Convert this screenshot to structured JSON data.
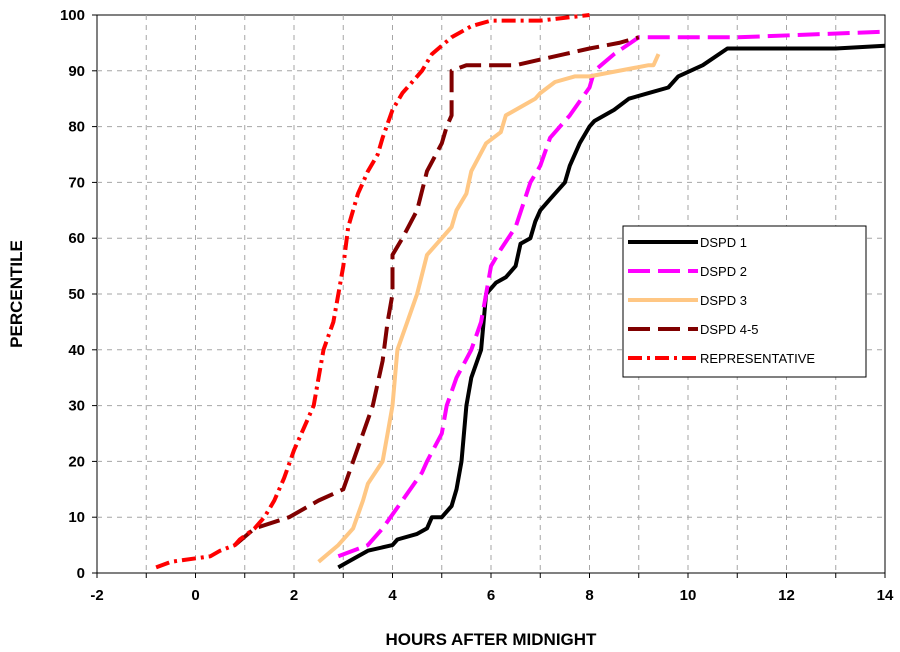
{
  "chart_data": {
    "type": "line",
    "xlabel": "HOURS AFTER MIDNIGHT",
    "ylabel": "PERCENTILE",
    "xlim": [
      -2,
      14
    ],
    "ylim": [
      0,
      100
    ],
    "xticks": [
      -2,
      0,
      2,
      4,
      6,
      8,
      10,
      12,
      14
    ],
    "yticks": [
      0,
      10,
      20,
      30,
      40,
      50,
      60,
      70,
      80,
      90,
      100
    ],
    "grid": true,
    "legend_position": "right",
    "series": [
      {
        "name": "DSPD 1",
        "color": "#000000",
        "dash": "solid",
        "x": [
          2.9,
          3.1,
          3.5,
          4.0,
          4.1,
          4.5,
          4.7,
          4.8,
          5.0,
          5.2,
          5.3,
          5.4,
          5.5,
          5.6,
          5.8,
          5.9,
          6.0,
          6.1,
          6.3,
          6.5,
          6.6,
          6.8,
          6.9,
          7.0,
          7.2,
          7.5,
          7.6,
          7.8,
          8.0,
          8.1,
          8.5,
          8.8,
          9.2,
          9.6,
          9.8,
          10.3,
          10.8,
          10.9,
          12.0,
          13.0,
          14.0
        ],
        "y": [
          1,
          2,
          4,
          5,
          6,
          7,
          8,
          10,
          10,
          12,
          15,
          20,
          30,
          35,
          40,
          50,
          51,
          52,
          53,
          55,
          59,
          60,
          63,
          65,
          67,
          70,
          73,
          77,
          80,
          81,
          83,
          85,
          86,
          87,
          89,
          91,
          94,
          94,
          94,
          94,
          94.5
        ]
      },
      {
        "name": "DSPD 2",
        "color": "#ff00ff",
        "dash": "dashed",
        "x": [
          2.9,
          3.5,
          3.8,
          4.2,
          4.6,
          4.7,
          5.0,
          5.1,
          5.3,
          5.6,
          5.8,
          5.9,
          6.0,
          6.2,
          6.5,
          6.8,
          7.0,
          7.2,
          7.6,
          8.0,
          8.1,
          8.5,
          9.0,
          11.0,
          14.0
        ],
        "y": [
          3,
          5,
          8,
          13,
          18,
          20,
          25,
          30,
          35,
          40,
          45,
          50,
          55,
          58,
          62,
          70,
          73,
          78,
          82,
          87,
          90,
          93,
          96,
          96,
          97
        ]
      },
      {
        "name": "DSPD 3",
        "color": "#ffc784",
        "dash": "solid",
        "x": [
          2.5,
          2.9,
          3.2,
          3.4,
          3.5,
          3.8,
          3.9,
          4.0,
          4.1,
          4.3,
          4.5,
          4.7,
          5.0,
          5.2,
          5.3,
          5.5,
          5.6,
          5.9,
          6.2,
          6.3,
          6.7,
          6.9,
          7.0,
          7.3,
          7.7,
          8.0,
          9.2,
          9.3,
          9.4
        ],
        "y": [
          2,
          5,
          8,
          13,
          16,
          20,
          25,
          30,
          40,
          45,
          50,
          57,
          60,
          62,
          65,
          68,
          72,
          77,
          79,
          82,
          84,
          85,
          86,
          88,
          89,
          89,
          91,
          91,
          93
        ]
      },
      {
        "name": "DSPD 4-5",
        "color": "#800000",
        "dash": "dashed",
        "x": [
          0.8,
          1.2,
          1.9,
          2.5,
          3.0,
          3.2,
          3.4,
          3.6,
          3.8,
          3.9,
          4.0,
          4.0,
          4.2,
          4.5,
          4.7,
          5.0,
          5.1,
          5.2,
          5.2,
          5.5,
          6.0,
          6.5,
          7.0,
          7.5,
          8.0,
          8.6,
          9.0
        ],
        "y": [
          5,
          8,
          10,
          13,
          15,
          20,
          25,
          30,
          38,
          45,
          50,
          57,
          60,
          65,
          72,
          77,
          80,
          82,
          90,
          91,
          91,
          91,
          92,
          93,
          94,
          95,
          96
        ]
      },
      {
        "name": "REPRESENTATIVE",
        "color": "#ff0000",
        "dash": "dashdot",
        "x": [
          -0.8,
          -0.5,
          0.3,
          0.5,
          0.8,
          0.9,
          1.2,
          1.4,
          1.6,
          1.8,
          2.0,
          2.2,
          2.4,
          2.5,
          2.6,
          2.8,
          3.0,
          3.1,
          3.2,
          3.3,
          3.4,
          3.5,
          3.7,
          3.8,
          4.0,
          4.2,
          4.4,
          4.6,
          4.8,
          5.2,
          5.6,
          6.0,
          6.5,
          7.0,
          8.0
        ],
        "y": [
          1,
          2,
          3,
          4,
          5,
          6,
          8,
          10,
          13,
          17,
          22,
          26,
          30,
          35,
          40,
          45,
          55,
          62,
          65,
          68,
          70,
          72,
          75,
          78,
          83,
          86,
          88,
          90,
          93,
          96,
          98,
          99,
          99,
          99,
          100
        ]
      }
    ]
  }
}
